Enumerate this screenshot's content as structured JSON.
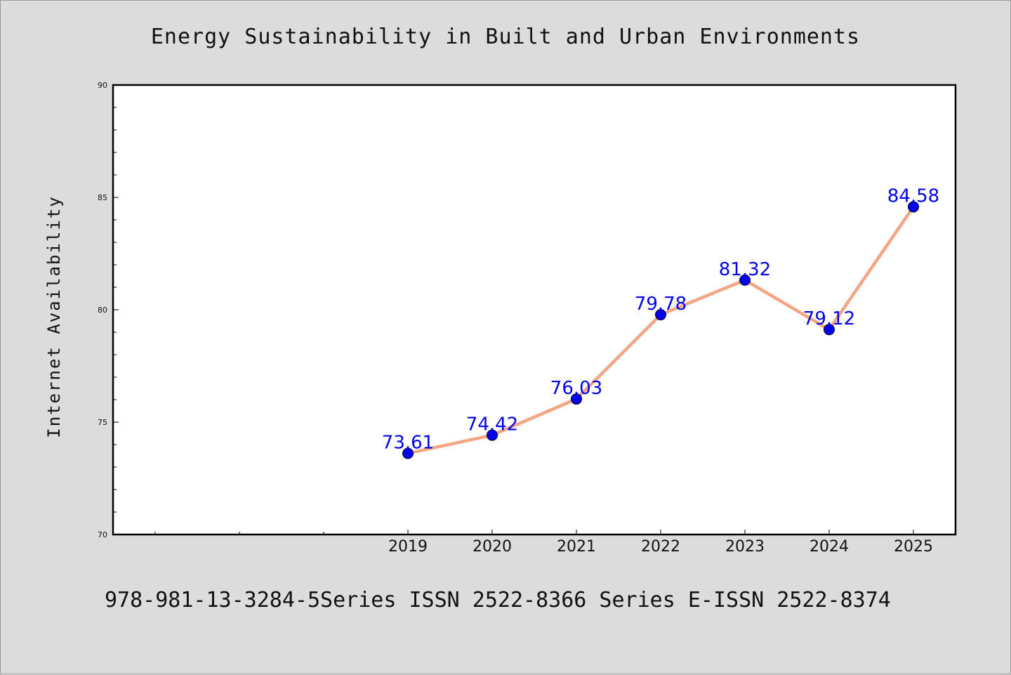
{
  "title": "Energy Sustainability in Built and Urban Environments",
  "footer": "978-981-13-3284-5Series ISSN 2522-8366 Series E-ISSN 2522-8374",
  "colors": {
    "background": "#dcdcdc",
    "plot_background": "#ffffff",
    "line": "#f4a582",
    "marker": "#0000ee",
    "label": "#0000ee"
  },
  "chart_data": {
    "type": "line",
    "title": "Energy Sustainability in Built and Urban Environments",
    "xlabel": "",
    "ylabel": "Internet Availability",
    "categories": [
      "2019",
      "2020",
      "2021",
      "2022",
      "2023",
      "2024",
      "2025"
    ],
    "values": [
      73.61,
      74.42,
      76.03,
      79.78,
      81.32,
      79.12,
      84.58
    ],
    "data_labels": [
      "73.61",
      "74.42",
      "76.03",
      "79.78",
      "81.32",
      "79.12",
      "84.58"
    ],
    "ylim": [
      70,
      90
    ],
    "yticks": [
      "70",
      "75",
      "80",
      "85",
      "90"
    ],
    "grid": false,
    "legend": "none"
  }
}
